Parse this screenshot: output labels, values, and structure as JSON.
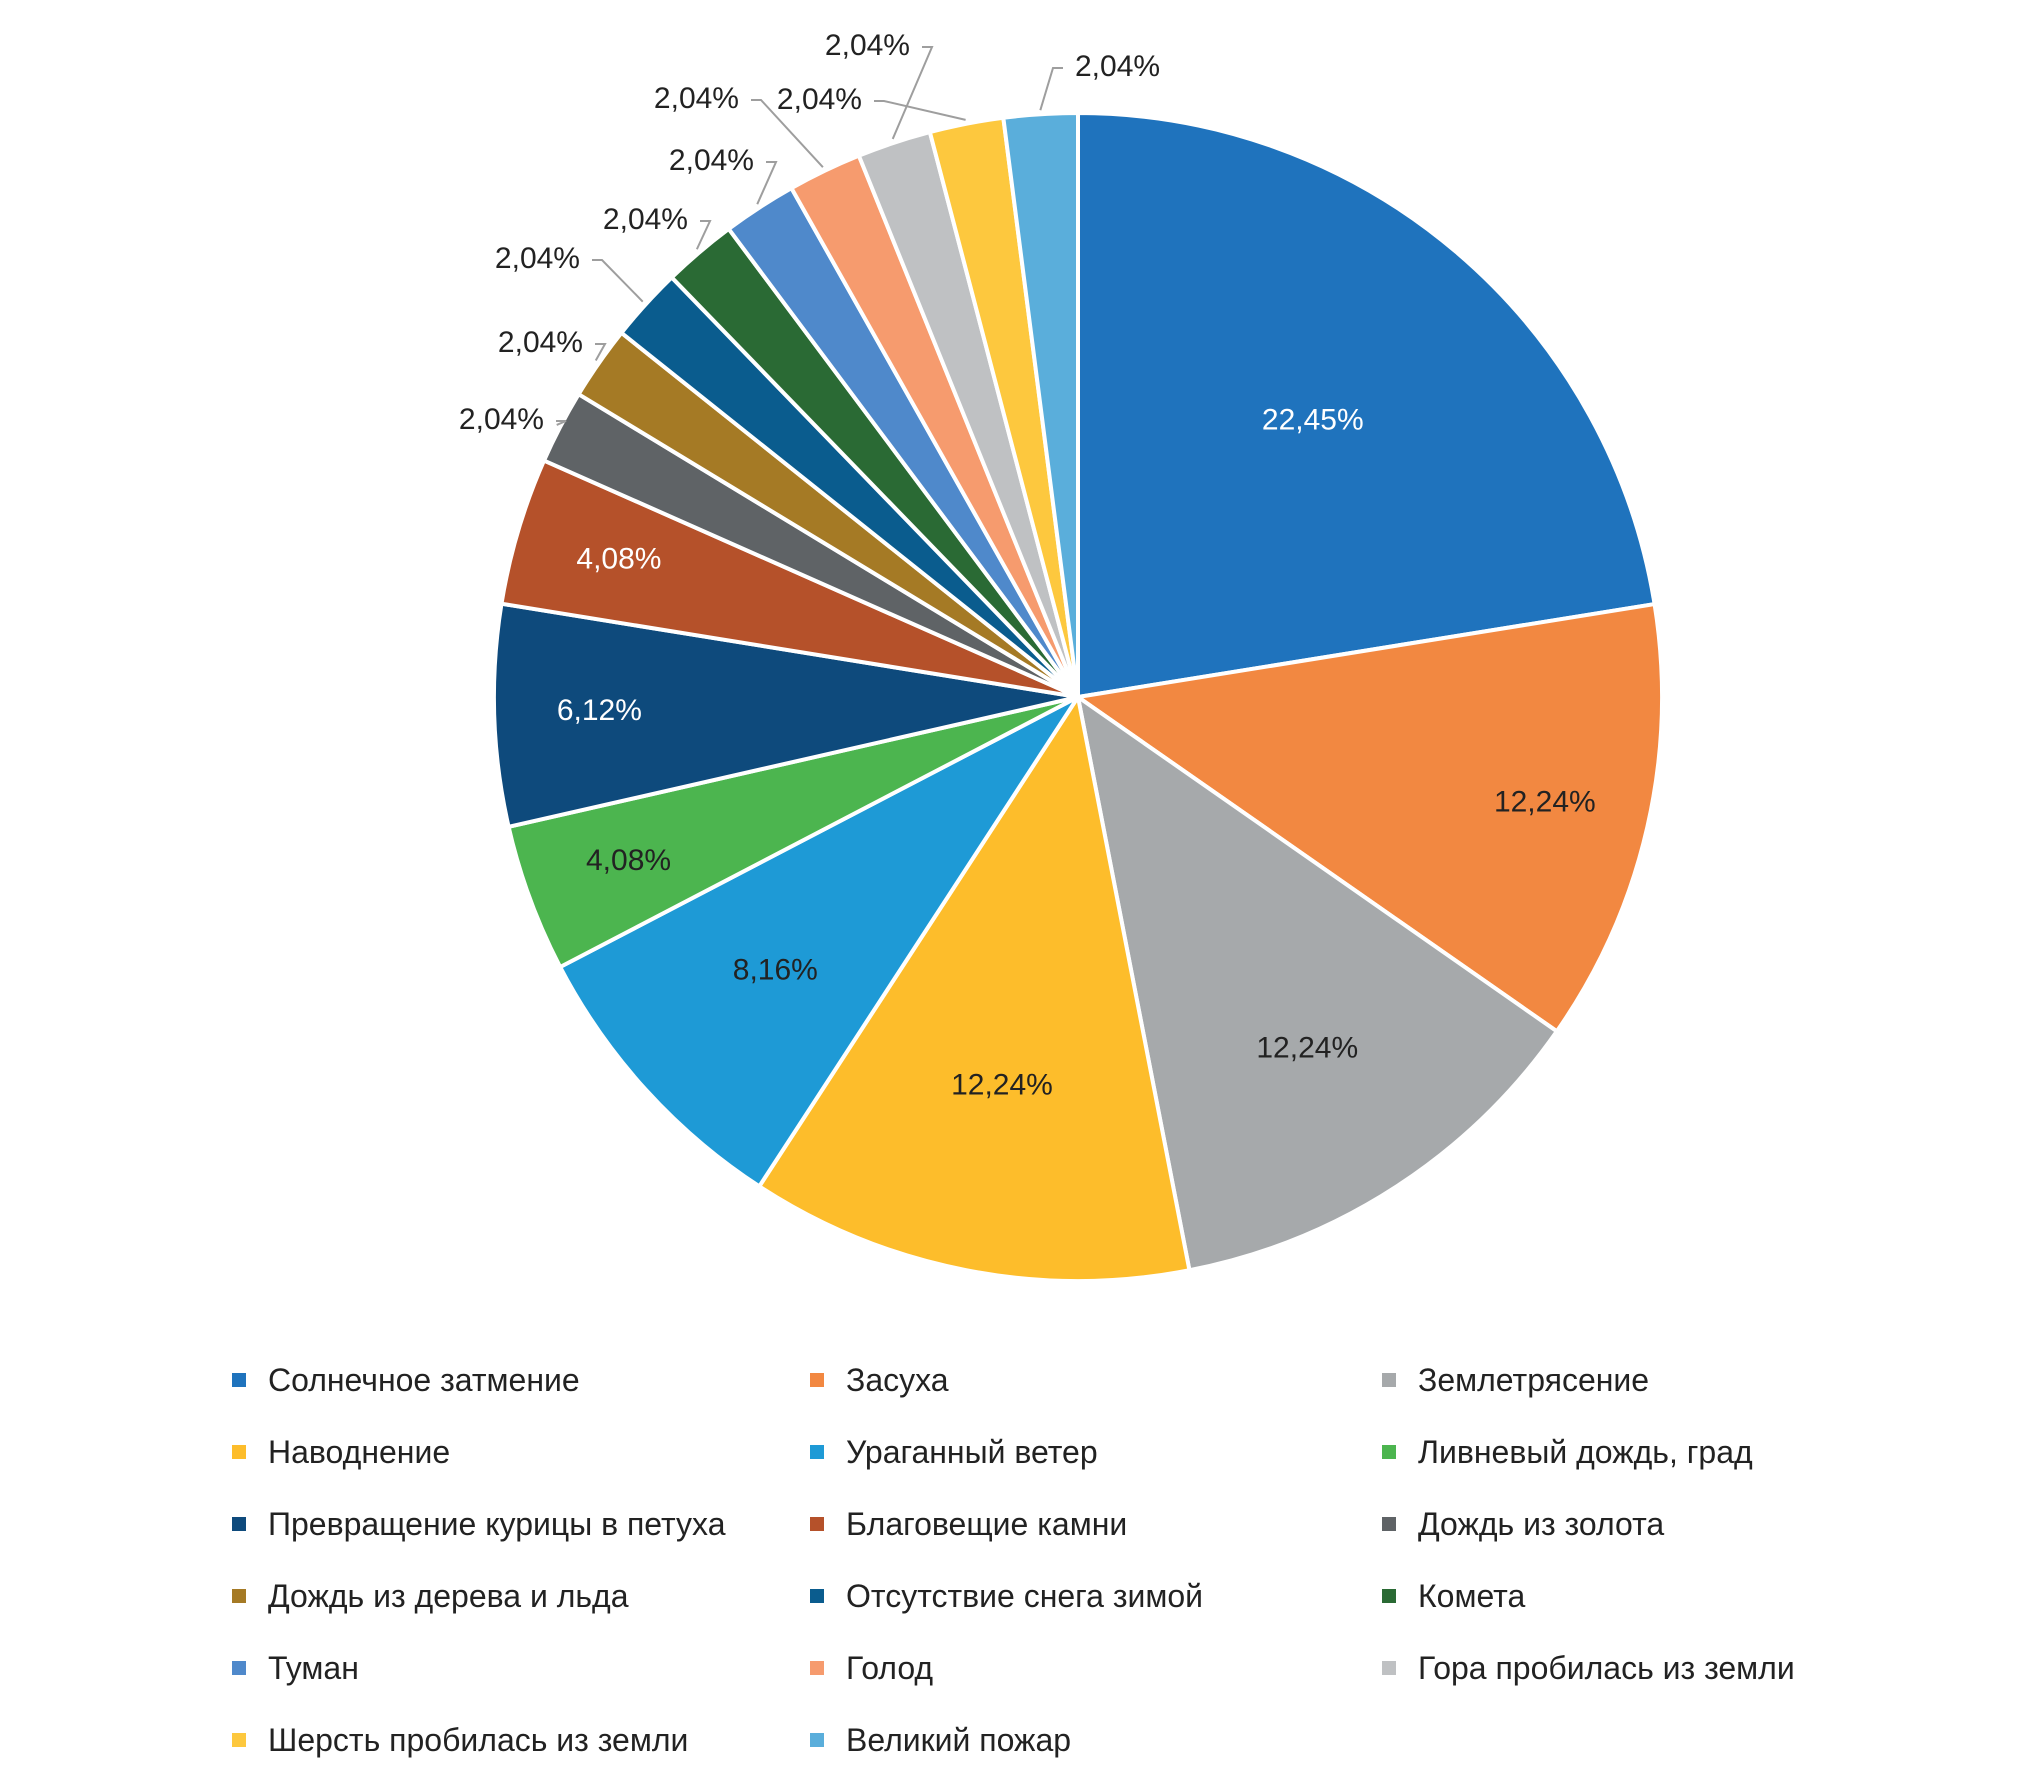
{
  "chart_data": {
    "type": "pie",
    "title": "",
    "legend_position": "bottom",
    "start_angle": "12 o'clock, clockwise",
    "slices": [
      {
        "label": "Солнечное затмение",
        "value": 22.45,
        "value_label": "22,45%",
        "color": "#1f73bd",
        "text_color": "#ffffff"
      },
      {
        "label": "Засуха",
        "value": 12.24,
        "value_label": "12,24%",
        "color": "#f28841",
        "text_color": "#222222"
      },
      {
        "label": "Землетрясение",
        "value": 12.24,
        "value_label": "12,24%",
        "color": "#a6a9ab",
        "text_color": "#222222"
      },
      {
        "label": "Наводнение",
        "value": 12.24,
        "value_label": "12,24%",
        "color": "#fdbd2b",
        "text_color": "#222222"
      },
      {
        "label": "Ураганный ветер",
        "value": 8.16,
        "value_label": "8,16%",
        "color": "#1e9ad6",
        "text_color": "#222222"
      },
      {
        "label": "Ливневый дождь, град",
        "value": 4.08,
        "value_label": "4,08%",
        "color": "#4cb54f",
        "text_color": "#222222"
      },
      {
        "label": "Превращение курицы в петуха",
        "value": 6.12,
        "value_label": "6,12%",
        "color": "#0e4a7c",
        "text_color": "#ffffff"
      },
      {
        "label": "Благовещие камни",
        "value": 4.08,
        "value_label": "4,08%",
        "color": "#b5512a",
        "text_color": "#ffffff"
      },
      {
        "label": "Дождь из золота",
        "value": 2.04,
        "value_label": "2,04%",
        "color": "#5f6366",
        "text_color": "#222222"
      },
      {
        "label": "Дождь из дерева и льда",
        "value": 2.04,
        "value_label": "2,04%",
        "color": "#a57a25",
        "text_color": "#222222"
      },
      {
        "label": "Отсутствие снега зимой",
        "value": 2.04,
        "value_label": "2,04%",
        "color": "#0a5c8e",
        "text_color": "#222222"
      },
      {
        "label": "Комета",
        "value": 2.04,
        "value_label": "2,04%",
        "color": "#2a6a34",
        "text_color": "#222222"
      },
      {
        "label": "Туман",
        "value": 2.04,
        "value_label": "2,04%",
        "color": "#4f89cb",
        "text_color": "#222222"
      },
      {
        "label": "Голод",
        "value": 2.04,
        "value_label": "2,04%",
        "color": "#f69b6e",
        "text_color": "#222222"
      },
      {
        "label": "Гора пробилась из земли",
        "value": 2.04,
        "value_label": "2,04%",
        "color": "#bfc1c3",
        "text_color": "#222222"
      },
      {
        "label": "Шерсть пробилась из земли",
        "value": 2.04,
        "value_label": "2,04%",
        "color": "#fdc83e",
        "text_color": "#222222"
      },
      {
        "label": "Великий пожар",
        "value": 2.04,
        "value_label": "2,04%",
        "color": "#5aaedb",
        "text_color": "#222222"
      }
    ]
  }
}
